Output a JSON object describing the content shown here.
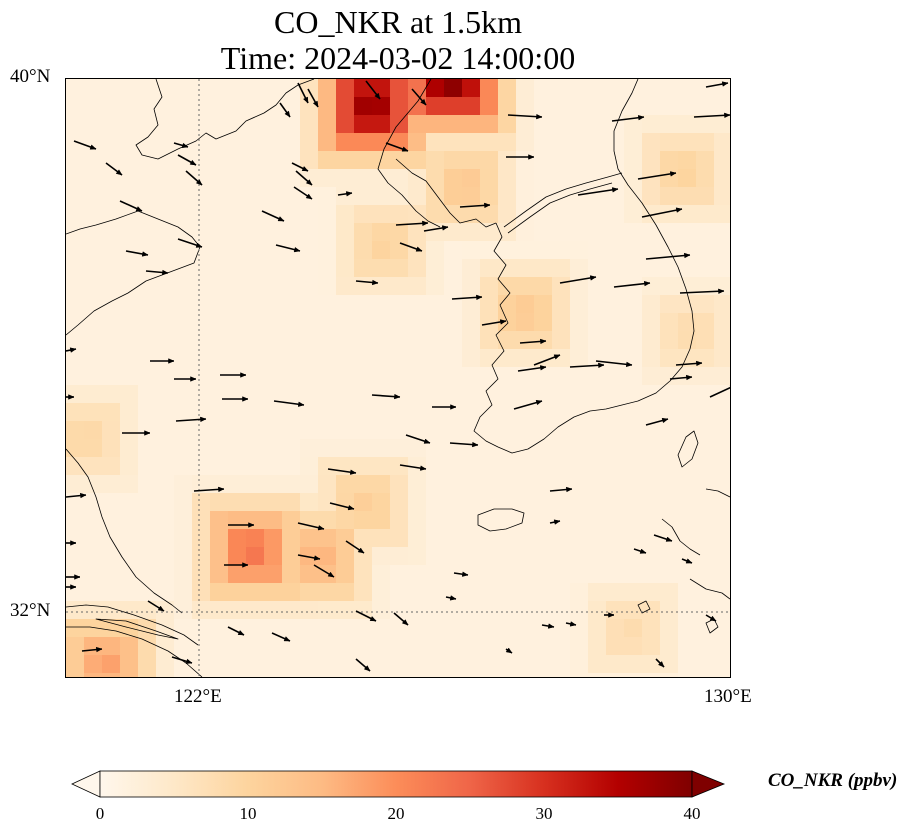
{
  "title": {
    "line1": "CO_NKR at 1.5km",
    "line2": "Time: 2024-03-02 14:00:00"
  },
  "map": {
    "lat_labels": [
      "40°N",
      "32°N"
    ],
    "lon_labels": [
      "122°E",
      "130°E"
    ],
    "extent": {
      "lon_min": 120,
      "lon_max": 130,
      "lat_min": 31,
      "lat_max": 40
    },
    "gridlines": {
      "lons": [
        122
      ],
      "lats": [
        32
      ]
    },
    "colormap": "OrRd",
    "features": [
      "coastlines",
      "wind-vectors",
      "CO concentration field"
    ]
  },
  "colorbar": {
    "label": "CO_NKR (ppbv)",
    "ticks": [
      "0",
      "10",
      "20",
      "30",
      "40"
    ],
    "min": 0,
    "max": 40,
    "extend": "both",
    "colors": [
      "#fff7ec",
      "#fee8c8",
      "#fdd49e",
      "#fdbb84",
      "#fc8d59",
      "#ef6548",
      "#d7301f",
      "#b30000",
      "#7f0000"
    ]
  },
  "chart_data": {
    "type": "heatmap",
    "title": "CO_NKR at 1.5km\nTime: 2024-03-02 14:00:00",
    "colorbar_label": "CO_NKR (ppbv)",
    "value_range": [
      0,
      40
    ],
    "xlim": [
      120,
      130
    ],
    "ylim": [
      31,
      40
    ],
    "hotspots": [
      {
        "lon": 124.6,
        "lat": 39.6,
        "value": 38
      },
      {
        "lon": 125.8,
        "lat": 40.0,
        "value": 40
      },
      {
        "lon": 122.8,
        "lat": 32.9,
        "value": 23
      },
      {
        "lon": 120.6,
        "lat": 31.2,
        "value": 18
      },
      {
        "lon": 126.9,
        "lat": 36.5,
        "value": 12
      },
      {
        "lon": 126.0,
        "lat": 38.4,
        "value": 12
      },
      {
        "lon": 124.8,
        "lat": 37.5,
        "value": 10
      },
      {
        "lon": 123.8,
        "lat": 32.8,
        "value": 16
      },
      {
        "lon": 124.5,
        "lat": 33.6,
        "value": 11
      },
      {
        "lon": 129.3,
        "lat": 38.6,
        "value": 10
      },
      {
        "lon": 129.4,
        "lat": 36.2,
        "value": 8
      },
      {
        "lon": 128.5,
        "lat": 31.7,
        "value": 8
      },
      {
        "lon": 120.3,
        "lat": 34.6,
        "value": 9
      }
    ]
  }
}
